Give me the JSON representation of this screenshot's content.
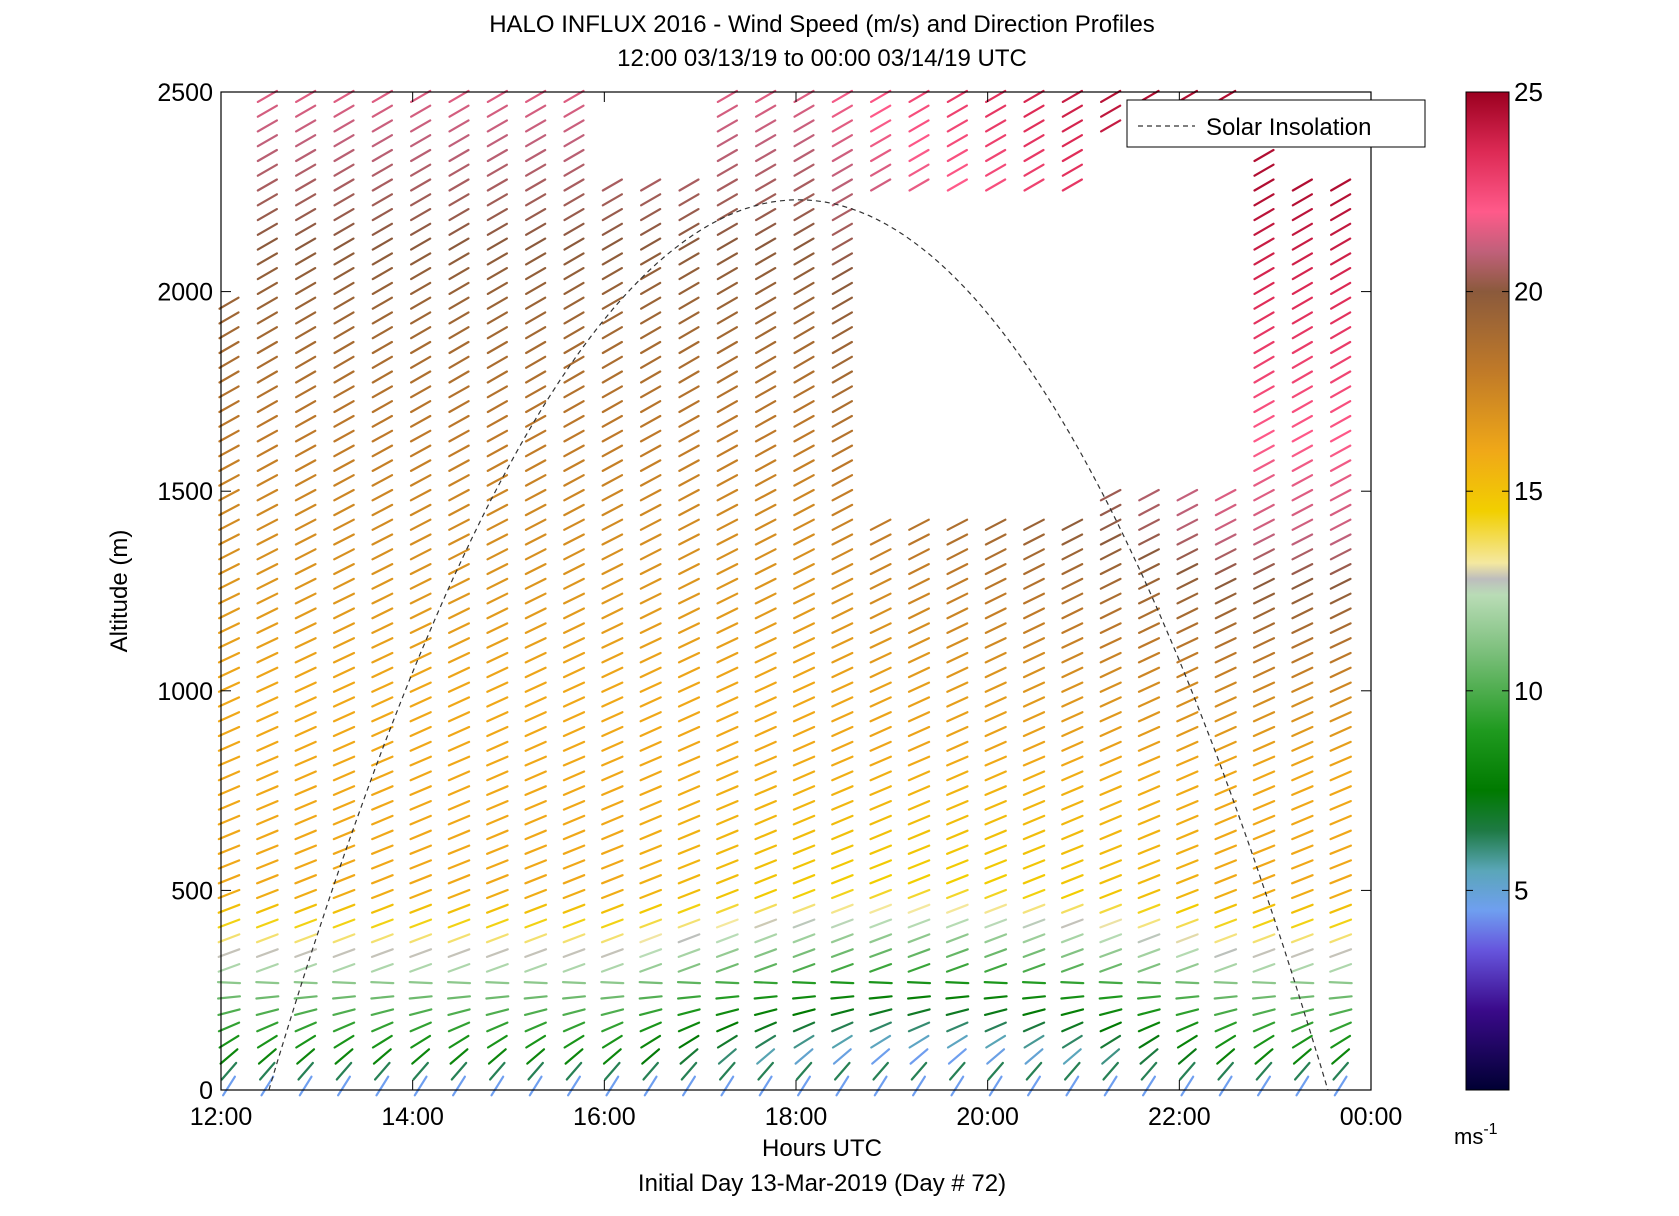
{
  "chart_data": {
    "type": "vector-field",
    "title": "HALO INFLUX 2016 - Wind Speed (m/s) and Direction Profiles",
    "subtitle": "12:00 03/13/19 to 00:00 03/14/19  UTC",
    "xlabel": "Hours UTC",
    "ylabel": "Altitude (m)",
    "footer": "Initial Day 13-Mar-2019 (Day # 72)",
    "xlim": [
      12,
      24
    ],
    "ylim": [
      0,
      2500
    ],
    "x_ticks": [
      12,
      14,
      16,
      18,
      20,
      22,
      24
    ],
    "x_tick_labels": [
      "12:00",
      "14:00",
      "16:00",
      "18:00",
      "20:00",
      "22:00",
      "00:00"
    ],
    "y_ticks": [
      0,
      500,
      1000,
      1500,
      2000,
      2500
    ],
    "y_tick_labels": [
      "0",
      "500",
      "1000",
      "1500",
      "2000",
      "2500"
    ],
    "legend": {
      "entries": [
        "Solar Insolation"
      ],
      "position": "top-right",
      "style": "dashed"
    },
    "colorbar": {
      "min": 0,
      "max": 25,
      "ticks": [
        5,
        10,
        15,
        20,
        25
      ],
      "tick_labels": [
        "5",
        "10",
        "15",
        "20",
        "25"
      ],
      "unit": "ms",
      "unit_exponent": "-1",
      "stops": [
        {
          "v": 0,
          "c": "#000033"
        },
        {
          "v": 2,
          "c": "#3a0a8a"
        },
        {
          "v": 3.5,
          "c": "#6655dd"
        },
        {
          "v": 4.5,
          "c": "#6f9ff0"
        },
        {
          "v": 5.5,
          "c": "#5aa6b8"
        },
        {
          "v": 6.5,
          "c": "#1e7a44"
        },
        {
          "v": 7.5,
          "c": "#007a00"
        },
        {
          "v": 9,
          "c": "#1f9a1f"
        },
        {
          "v": 11,
          "c": "#7dc07d"
        },
        {
          "v": 12.4,
          "c": "#b9dcb6"
        },
        {
          "v": 12.8,
          "c": "#bdbdbd"
        },
        {
          "v": 13.2,
          "c": "#f4e8a0"
        },
        {
          "v": 14.5,
          "c": "#f2cf00"
        },
        {
          "v": 16,
          "c": "#f0a818"
        },
        {
          "v": 18,
          "c": "#c07a28"
        },
        {
          "v": 20,
          "c": "#8b5a3c"
        },
        {
          "v": 21,
          "c": "#c0607a"
        },
        {
          "v": 22,
          "c": "#ff5a8a"
        },
        {
          "v": 23.5,
          "c": "#dd2a55"
        },
        {
          "v": 25,
          "c": "#9b0020"
        }
      ]
    },
    "solar_insolation": {
      "start_hour": 12.5,
      "end_hour": 23.55,
      "peak_altitude": 2230
    },
    "profile_hours": [
      12.0,
      12.4,
      12.8,
      13.2,
      13.6,
      14.0,
      14.4,
      14.8,
      15.2,
      15.6,
      16.0,
      16.4,
      16.8,
      17.2,
      17.6,
      18.0,
      18.4,
      18.8,
      19.2,
      19.6,
      20.0,
      20.4,
      20.8,
      21.2,
      21.6,
      22.0,
      22.4,
      22.8,
      23.2,
      23.6
    ],
    "profile_top_altitude": [
      2000,
      2500,
      2500,
      2500,
      2500,
      2500,
      2500,
      2500,
      2500,
      2500,
      2500,
      2500,
      2500,
      2500,
      2500,
      2500,
      2500,
      2500,
      2500,
      2500,
      2500,
      2500,
      2500,
      2500,
      2500,
      2500,
      2500,
      2400,
      2300,
      2300
    ],
    "speed_profile": [
      {
        "alt": 0,
        "speed": 4
      },
      {
        "alt": 80,
        "speed": 8
      },
      {
        "alt": 250,
        "speed": 11
      },
      {
        "alt": 500,
        "speed": 16
      },
      {
        "alt": 1000,
        "speed": 16
      },
      {
        "alt": 1500,
        "speed": 17.5
      },
      {
        "alt": 2000,
        "speed": 19.5
      },
      {
        "alt": 2500,
        "speed": 21.5
      }
    ],
    "missing_regions": [
      {
        "hour_min": 18.45,
        "hour_max": 20.8,
        "alt_min": 1450,
        "alt_max": 2250
      },
      {
        "hour_min": 20.9,
        "hour_max": 22.7,
        "alt_min": 1500,
        "alt_max": 2400
      },
      {
        "hour_min": 15.9,
        "hour_max": 16.8,
        "alt_min": 2300,
        "alt_max": 2500
      }
    ]
  }
}
